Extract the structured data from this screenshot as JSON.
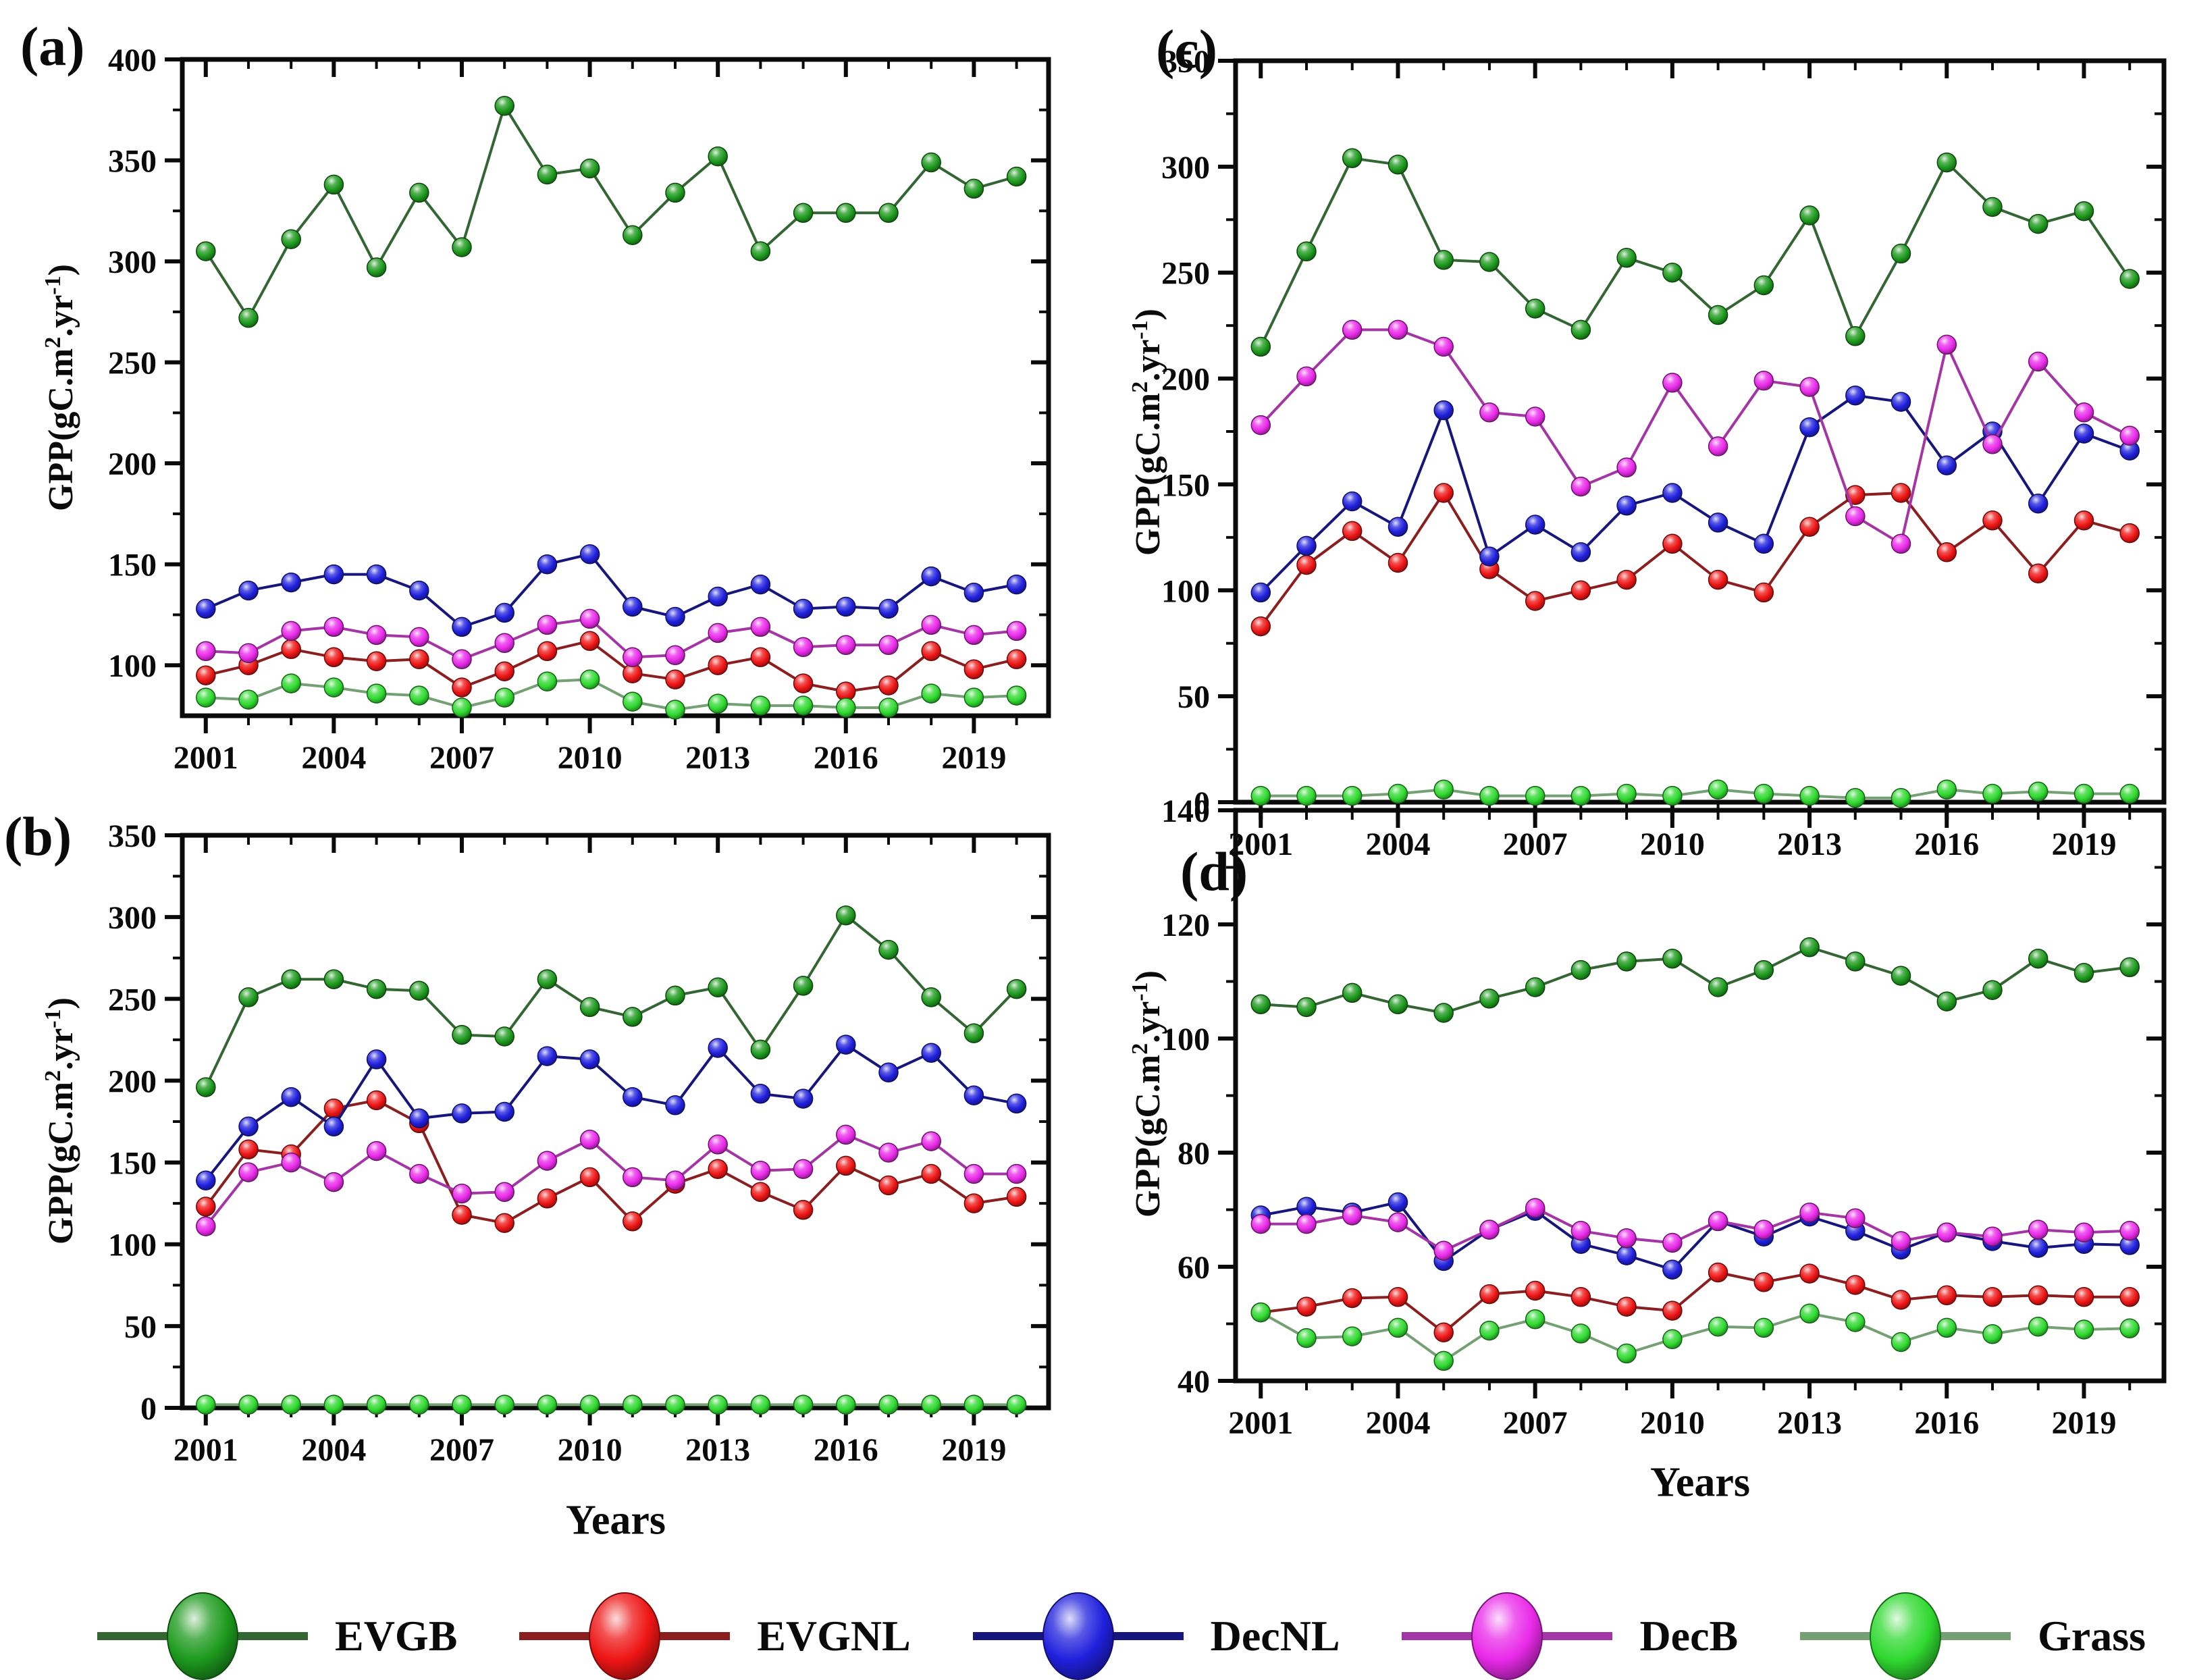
{
  "figure": {
    "xlabel": "Years",
    "ylabel_parts": [
      "GPP(gC.m",
      "2",
      ".yr",
      "-1",
      ")"
    ]
  },
  "legend": {
    "items": [
      {
        "label": "EVGB",
        "marker_color": "#1d9a1d",
        "line_color": "#336633"
      },
      {
        "label": "EVGNL",
        "marker_color": "#ee1515",
        "line_color": "#8b1f1f"
      },
      {
        "label": "DecNL",
        "marker_color": "#2020dd",
        "line_color": "#16167d"
      },
      {
        "label": "DecB",
        "marker_color": "#e92ae9",
        "line_color": "#a435a4"
      },
      {
        "label": "Grass",
        "marker_color": "#30d930",
        "line_color": "#74a074"
      }
    ]
  },
  "chart_data": [
    {
      "panel_label": "(a)",
      "type": "line",
      "x": [
        2001,
        2002,
        2003,
        2004,
        2005,
        2006,
        2007,
        2008,
        2009,
        2010,
        2011,
        2012,
        2013,
        2014,
        2015,
        2016,
        2017,
        2018,
        2019,
        2020
      ],
      "xticks": [
        2001,
        2004,
        2007,
        2010,
        2013,
        2016,
        2019
      ],
      "xminor_step": 1,
      "xlim": [
        2000.45,
        2020.75
      ],
      "ylim": [
        75,
        400
      ],
      "yticks": [
        100,
        150,
        200,
        250,
        300,
        350,
        400
      ],
      "yminor_step": 25,
      "grid": false,
      "legend_position": "bottom-shared",
      "series": [
        {
          "name": "EVGB",
          "values": [
            305,
            272,
            311,
            338,
            297,
            334,
            307,
            377,
            343,
            346,
            313,
            334,
            352,
            305,
            324,
            324,
            324,
            349,
            336,
            342
          ]
        },
        {
          "name": "EVGNL",
          "values": [
            95,
            100,
            108,
            104,
            102,
            103,
            89,
            97,
            107,
            112,
            96,
            93,
            100,
            104,
            91,
            87,
            90,
            107,
            98,
            103
          ]
        },
        {
          "name": "DecNL",
          "values": [
            128,
            137,
            141,
            145,
            145,
            137,
            119,
            126,
            150,
            155,
            129,
            124,
            134,
            140,
            128,
            129,
            128,
            144,
            136,
            140
          ]
        },
        {
          "name": "DecB",
          "values": [
            107,
            106,
            117,
            119,
            115,
            114,
            103,
            111,
            120,
            123,
            104,
            105,
            116,
            119,
            109,
            110,
            110,
            120,
            115,
            117
          ]
        },
        {
          "name": "Grass",
          "values": [
            84,
            83,
            91,
            89,
            86,
            85,
            79,
            84,
            92,
            93,
            82,
            78,
            81,
            80,
            80,
            79,
            79,
            86,
            84,
            85
          ]
        }
      ]
    },
    {
      "panel_label": "(b)",
      "type": "line",
      "x": [
        2001,
        2002,
        2003,
        2004,
        2005,
        2006,
        2007,
        2008,
        2009,
        2010,
        2011,
        2012,
        2013,
        2014,
        2015,
        2016,
        2017,
        2018,
        2019,
        2020
      ],
      "xticks": [
        2001,
        2004,
        2007,
        2010,
        2013,
        2016,
        2019
      ],
      "xminor_step": 1,
      "xlim": [
        2000.45,
        2020.75
      ],
      "ylim": [
        0,
        350
      ],
      "yticks": [
        0,
        50,
        100,
        150,
        200,
        250,
        300,
        350
      ],
      "yminor_step": 25,
      "grid": false,
      "legend_position": "bottom-shared",
      "series": [
        {
          "name": "EVGB",
          "values": [
            196,
            251,
            262,
            262,
            256,
            255,
            228,
            227,
            262,
            245,
            239,
            252,
            257,
            219,
            258,
            301,
            280,
            251,
            229,
            256
          ]
        },
        {
          "name": "EVGNL",
          "values": [
            123,
            158,
            155,
            183,
            188,
            174,
            118,
            113,
            128,
            141,
            114,
            137,
            146,
            132,
            121,
            148,
            136,
            143,
            125,
            129
          ]
        },
        {
          "name": "DecNL",
          "values": [
            139,
            172,
            190,
            172,
            213,
            177,
            180,
            181,
            215,
            213,
            190,
            185,
            220,
            192,
            189,
            222,
            205,
            217,
            191,
            186
          ]
        },
        {
          "name": "DecB",
          "values": [
            111,
            144,
            150,
            138,
            157,
            143,
            131,
            132,
            151,
            164,
            141,
            139,
            161,
            145,
            146,
            167,
            156,
            163,
            143,
            143
          ]
        },
        {
          "name": "Grass",
          "values": [
            2,
            2,
            2,
            2,
            2,
            2,
            2,
            2,
            2,
            2,
            2,
            2,
            2,
            2,
            2,
            2,
            2,
            2,
            2,
            2
          ]
        }
      ]
    },
    {
      "panel_label": "(c)",
      "type": "line",
      "x": [
        2001,
        2002,
        2003,
        2004,
        2005,
        2006,
        2007,
        2008,
        2009,
        2010,
        2011,
        2012,
        2013,
        2014,
        2015,
        2016,
        2017,
        2018,
        2019,
        2020
      ],
      "xticks": [
        2001,
        2004,
        2007,
        2010,
        2013,
        2016,
        2019
      ],
      "xminor_step": 1,
      "xlim": [
        2000.45,
        2020.75
      ],
      "ylim": [
        0,
        350
      ],
      "yticks": [
        0,
        50,
        100,
        150,
        200,
        250,
        300,
        350
      ],
      "yminor_step": 25,
      "grid": false,
      "legend_position": "bottom-shared",
      "series": [
        {
          "name": "EVGB",
          "values": [
            215,
            260,
            304,
            301,
            256,
            255,
            233,
            223,
            257,
            250,
            230,
            244,
            277,
            220,
            259,
            302,
            281,
            273,
            279,
            247
          ]
        },
        {
          "name": "EVGNL",
          "values": [
            83,
            112,
            128,
            113,
            146,
            110,
            95,
            100,
            105,
            122,
            105,
            99,
            130,
            145,
            146,
            118,
            133,
            108,
            133,
            127
          ]
        },
        {
          "name": "DecNL",
          "values": [
            99,
            121,
            142,
            130,
            185,
            116,
            131,
            118,
            140,
            146,
            132,
            122,
            177,
            192,
            189,
            159,
            175,
            141,
            174,
            166
          ]
        },
        {
          "name": "DecB",
          "values": [
            178,
            201,
            223,
            223,
            215,
            184,
            182,
            149,
            158,
            198,
            168,
            199,
            196,
            135,
            122,
            216,
            169,
            208,
            184,
            173
          ]
        },
        {
          "name": "Grass",
          "values": [
            3,
            3,
            3,
            4,
            6,
            3,
            3,
            3,
            4,
            3,
            6,
            4,
            3,
            2,
            2,
            6,
            4,
            5,
            4,
            4
          ]
        }
      ]
    },
    {
      "panel_label": "(d)",
      "type": "line",
      "x": [
        2001,
        2002,
        2003,
        2004,
        2005,
        2006,
        2007,
        2008,
        2009,
        2010,
        2011,
        2012,
        2013,
        2014,
        2015,
        2016,
        2017,
        2018,
        2019,
        2020
      ],
      "xticks": [
        2001,
        2004,
        2007,
        2010,
        2013,
        2016,
        2019
      ],
      "xminor_step": 1,
      "xlim": [
        2000.45,
        2020.75
      ],
      "ylim": [
        40,
        140
      ],
      "yticks": [
        40,
        60,
        80,
        100,
        120,
        140
      ],
      "yminor_step": 10,
      "grid": false,
      "legend_position": "bottom-shared",
      "series": [
        {
          "name": "EVGB",
          "values": [
            106,
            105.5,
            108,
            106,
            104.5,
            107,
            109,
            112,
            113.5,
            114,
            109,
            112,
            116,
            113.5,
            111,
            106.5,
            108.5,
            114,
            111.5,
            112.5
          ]
        },
        {
          "name": "EVGNL",
          "values": [
            52,
            53,
            54.5,
            54.7,
            48.5,
            55.2,
            55.8,
            54.7,
            53,
            52.3,
            59,
            57.3,
            58.8,
            56.8,
            54.2,
            55,
            54.7,
            55,
            54.7,
            54.7
          ]
        },
        {
          "name": "DecNL",
          "values": [
            69,
            70.5,
            69.5,
            71.3,
            61,
            66.5,
            69.8,
            64,
            62,
            59.5,
            68,
            65.3,
            68.8,
            66.3,
            63,
            66,
            64.5,
            63.3,
            64,
            63.8
          ]
        },
        {
          "name": "DecB",
          "values": [
            67.5,
            67.5,
            69,
            67.8,
            62.8,
            66.5,
            70.3,
            66.3,
            65,
            64.2,
            68,
            66.5,
            69.5,
            68.5,
            64.5,
            66,
            65.3,
            66.5,
            66,
            66.3
          ]
        },
        {
          "name": "Grass",
          "values": [
            52,
            47.5,
            47.8,
            49.3,
            43.5,
            48.8,
            50.8,
            48.3,
            44.8,
            47.3,
            49.5,
            49.3,
            51.8,
            50.3,
            46.8,
            49.3,
            48.2,
            49.5,
            49,
            49.2
          ]
        }
      ]
    }
  ]
}
